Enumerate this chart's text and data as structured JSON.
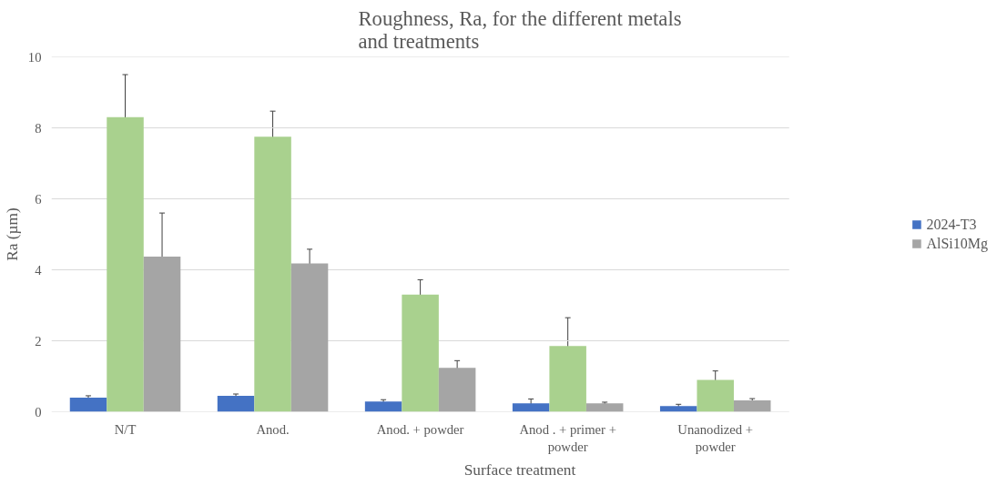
{
  "chart_data": {
    "type": "bar",
    "title": "Roughness, Ra, for the different metals\nand treatments",
    "xlabel": "Surface treatment",
    "ylabel": "Ra (µm)",
    "categories": [
      "N/T",
      "Anod.",
      "Anod. + powder",
      "Anod . + primer + powder",
      "Unanodized + powder"
    ],
    "series": [
      {
        "name": "2024-T3",
        "color": "#4472c4",
        "values": [
          0.4,
          0.45,
          0.29,
          0.24,
          0.16
        ],
        "errors": [
          0.05,
          0.05,
          0.05,
          0.12,
          0.05
        ]
      },
      {
        "color": "#a9d18e",
        "values": [
          8.3,
          7.75,
          3.3,
          1.85,
          0.9
        ],
        "errors": [
          1.2,
          0.72,
          0.42,
          0.8,
          0.25
        ]
      },
      {
        "name": "AlSi10Mg",
        "color": "#a5a5a5",
        "values": [
          4.37,
          4.18,
          1.24,
          0.24,
          0.32
        ],
        "errors": [
          1.23,
          0.4,
          0.2,
          0.03,
          0.05
        ]
      }
    ],
    "ylim": [
      0,
      10
    ],
    "yticks": [
      0,
      2,
      4,
      6,
      8,
      10
    ],
    "grid": "y",
    "legend": "right"
  }
}
